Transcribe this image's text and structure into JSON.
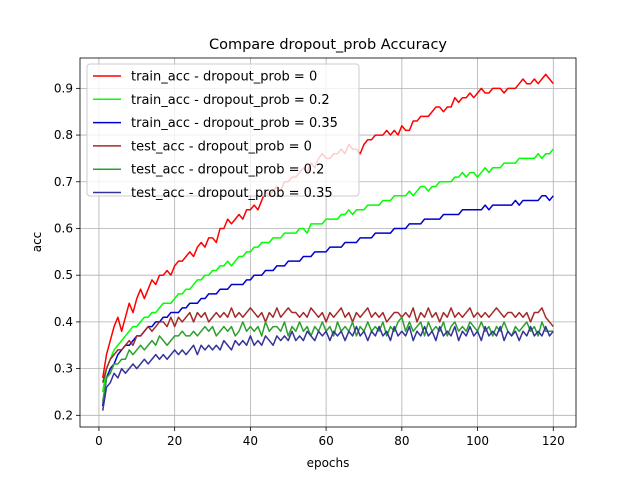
{
  "chart_data": {
    "type": "line",
    "title": "Compare dropout_prob Accuracy",
    "xlabel": "epochs",
    "ylabel": "acc",
    "xlim": [
      -5,
      126
    ],
    "ylim": [
      0.175,
      0.965
    ],
    "xticks": [
      0,
      20,
      40,
      60,
      80,
      100,
      120
    ],
    "yticks": [
      0.2,
      0.3,
      0.4,
      0.5,
      0.6,
      0.7,
      0.8,
      0.9
    ],
    "grid": true,
    "legend_position": "top-left",
    "x": [
      1,
      2,
      3,
      4,
      5,
      6,
      7,
      8,
      9,
      10,
      11,
      12,
      13,
      14,
      15,
      16,
      17,
      18,
      19,
      20,
      21,
      22,
      23,
      24,
      25,
      26,
      27,
      28,
      29,
      30,
      31,
      32,
      33,
      34,
      35,
      36,
      37,
      38,
      39,
      40,
      41,
      42,
      43,
      44,
      45,
      46,
      47,
      48,
      49,
      50,
      51,
      52,
      53,
      54,
      55,
      56,
      57,
      58,
      59,
      60,
      61,
      62,
      63,
      64,
      65,
      66,
      67,
      68,
      69,
      70,
      71,
      72,
      73,
      74,
      75,
      76,
      77,
      78,
      79,
      80,
      81,
      82,
      83,
      84,
      85,
      86,
      87,
      88,
      89,
      90,
      91,
      92,
      93,
      94,
      95,
      96,
      97,
      98,
      99,
      100,
      101,
      102,
      103,
      104,
      105,
      106,
      107,
      108,
      109,
      110,
      111,
      112,
      113,
      114,
      115,
      116,
      117,
      118,
      119,
      120
    ],
    "series": [
      {
        "name": "train_acc - dropout_prob = 0",
        "color": "#ff0000",
        "values": [
          0.28,
          0.33,
          0.36,
          0.39,
          0.41,
          0.38,
          0.41,
          0.44,
          0.42,
          0.45,
          0.47,
          0.45,
          0.47,
          0.49,
          0.48,
          0.5,
          0.5,
          0.51,
          0.5,
          0.52,
          0.53,
          0.53,
          0.54,
          0.55,
          0.54,
          0.56,
          0.57,
          0.56,
          0.58,
          0.58,
          0.57,
          0.6,
          0.6,
          0.62,
          0.61,
          0.62,
          0.63,
          0.62,
          0.64,
          0.64,
          0.65,
          0.64,
          0.66,
          0.68,
          0.67,
          0.68,
          0.69,
          0.68,
          0.7,
          0.7,
          0.71,
          0.71,
          0.72,
          0.73,
          0.72,
          0.74,
          0.73,
          0.75,
          0.76,
          0.75,
          0.75,
          0.76,
          0.76,
          0.77,
          0.76,
          0.78,
          0.77,
          0.77,
          0.76,
          0.78,
          0.79,
          0.79,
          0.8,
          0.8,
          0.8,
          0.81,
          0.8,
          0.81,
          0.8,
          0.82,
          0.81,
          0.81,
          0.83,
          0.83,
          0.84,
          0.84,
          0.84,
          0.85,
          0.86,
          0.86,
          0.85,
          0.86,
          0.86,
          0.88,
          0.87,
          0.88,
          0.88,
          0.89,
          0.88,
          0.89,
          0.9,
          0.89,
          0.89,
          0.9,
          0.9,
          0.9,
          0.89,
          0.9,
          0.9,
          0.9,
          0.91,
          0.92,
          0.91,
          0.91,
          0.92,
          0.91,
          0.92,
          0.93,
          0.92,
          0.91
        ]
      },
      {
        "name": "train_acc - dropout_prob = 0.2",
        "color": "#00ff00",
        "values": [
          0.25,
          0.3,
          0.32,
          0.34,
          0.35,
          0.36,
          0.37,
          0.38,
          0.39,
          0.39,
          0.4,
          0.41,
          0.41,
          0.42,
          0.42,
          0.43,
          0.44,
          0.44,
          0.44,
          0.45,
          0.46,
          0.46,
          0.47,
          0.47,
          0.48,
          0.49,
          0.49,
          0.5,
          0.5,
          0.51,
          0.51,
          0.52,
          0.52,
          0.53,
          0.52,
          0.53,
          0.54,
          0.54,
          0.55,
          0.55,
          0.56,
          0.56,
          0.57,
          0.57,
          0.57,
          0.58,
          0.58,
          0.58,
          0.59,
          0.59,
          0.59,
          0.59,
          0.6,
          0.6,
          0.59,
          0.61,
          0.61,
          0.61,
          0.61,
          0.62,
          0.62,
          0.62,
          0.62,
          0.63,
          0.63,
          0.64,
          0.63,
          0.64,
          0.64,
          0.64,
          0.65,
          0.65,
          0.65,
          0.65,
          0.66,
          0.66,
          0.66,
          0.67,
          0.67,
          0.67,
          0.67,
          0.68,
          0.67,
          0.68,
          0.69,
          0.69,
          0.68,
          0.69,
          0.69,
          0.7,
          0.7,
          0.7,
          0.7,
          0.71,
          0.71,
          0.72,
          0.71,
          0.72,
          0.72,
          0.71,
          0.72,
          0.73,
          0.72,
          0.73,
          0.73,
          0.73,
          0.74,
          0.74,
          0.74,
          0.74,
          0.75,
          0.75,
          0.75,
          0.75,
          0.75,
          0.76,
          0.75,
          0.76,
          0.76,
          0.77
        ]
      },
      {
        "name": "train_acc - dropout_prob = 0.35",
        "color": "#0000cc",
        "values": [
          0.22,
          0.28,
          0.3,
          0.31,
          0.33,
          0.34,
          0.35,
          0.35,
          0.36,
          0.37,
          0.37,
          0.38,
          0.39,
          0.39,
          0.4,
          0.4,
          0.41,
          0.41,
          0.42,
          0.42,
          0.42,
          0.43,
          0.43,
          0.44,
          0.44,
          0.44,
          0.45,
          0.45,
          0.46,
          0.46,
          0.46,
          0.47,
          0.47,
          0.47,
          0.48,
          0.48,
          0.48,
          0.48,
          0.49,
          0.49,
          0.5,
          0.5,
          0.5,
          0.51,
          0.51,
          0.51,
          0.52,
          0.52,
          0.52,
          0.53,
          0.53,
          0.53,
          0.53,
          0.54,
          0.54,
          0.54,
          0.55,
          0.55,
          0.55,
          0.55,
          0.56,
          0.56,
          0.56,
          0.56,
          0.57,
          0.57,
          0.57,
          0.57,
          0.58,
          0.58,
          0.58,
          0.58,
          0.59,
          0.59,
          0.59,
          0.59,
          0.59,
          0.6,
          0.6,
          0.6,
          0.6,
          0.61,
          0.61,
          0.61,
          0.61,
          0.62,
          0.62,
          0.62,
          0.62,
          0.62,
          0.63,
          0.63,
          0.63,
          0.63,
          0.63,
          0.64,
          0.64,
          0.64,
          0.64,
          0.64,
          0.64,
          0.65,
          0.64,
          0.65,
          0.65,
          0.65,
          0.65,
          0.65,
          0.65,
          0.66,
          0.65,
          0.66,
          0.66,
          0.66,
          0.66,
          0.66,
          0.67,
          0.67,
          0.66,
          0.67
        ]
      },
      {
        "name": "test_acc - dropout_prob = 0",
        "color": "#a52a2a",
        "values": [
          0.27,
          0.3,
          0.32,
          0.33,
          0.34,
          0.34,
          0.35,
          0.36,
          0.35,
          0.37,
          0.37,
          0.38,
          0.39,
          0.38,
          0.39,
          0.4,
          0.4,
          0.39,
          0.41,
          0.39,
          0.41,
          0.4,
          0.41,
          0.42,
          0.4,
          0.42,
          0.41,
          0.42,
          0.4,
          0.41,
          0.42,
          0.41,
          0.42,
          0.41,
          0.43,
          0.41,
          0.42,
          0.41,
          0.42,
          0.43,
          0.42,
          0.41,
          0.42,
          0.4,
          0.42,
          0.41,
          0.43,
          0.41,
          0.42,
          0.43,
          0.42,
          0.42,
          0.41,
          0.42,
          0.41,
          0.43,
          0.42,
          0.41,
          0.42,
          0.4,
          0.42,
          0.41,
          0.42,
          0.43,
          0.41,
          0.42,
          0.4,
          0.42,
          0.41,
          0.42,
          0.43,
          0.41,
          0.42,
          0.41,
          0.42,
          0.4,
          0.41,
          0.42,
          0.42,
          0.41,
          0.42,
          0.41,
          0.43,
          0.4,
          0.42,
          0.41,
          0.43,
          0.41,
          0.42,
          0.4,
          0.42,
          0.41,
          0.43,
          0.41,
          0.42,
          0.41,
          0.42,
          0.43,
          0.41,
          0.42,
          0.41,
          0.42,
          0.41,
          0.42,
          0.43,
          0.42,
          0.41,
          0.42,
          0.42,
          0.41,
          0.42,
          0.41,
          0.42,
          0.4,
          0.42,
          0.42,
          0.43,
          0.41,
          0.4,
          0.39
        ]
      },
      {
        "name": "test_acc - dropout_prob = 0.2",
        "color": "#2ca02c",
        "values": [
          0.23,
          0.28,
          0.29,
          0.31,
          0.31,
          0.32,
          0.32,
          0.34,
          0.33,
          0.34,
          0.35,
          0.34,
          0.35,
          0.36,
          0.35,
          0.37,
          0.36,
          0.35,
          0.36,
          0.37,
          0.37,
          0.38,
          0.37,
          0.37,
          0.38,
          0.37,
          0.38,
          0.39,
          0.38,
          0.39,
          0.37,
          0.38,
          0.39,
          0.38,
          0.39,
          0.37,
          0.38,
          0.4,
          0.38,
          0.39,
          0.38,
          0.39,
          0.37,
          0.4,
          0.38,
          0.39,
          0.39,
          0.38,
          0.4,
          0.37,
          0.39,
          0.38,
          0.4,
          0.38,
          0.39,
          0.37,
          0.39,
          0.38,
          0.4,
          0.38,
          0.39,
          0.37,
          0.4,
          0.38,
          0.39,
          0.38,
          0.4,
          0.37,
          0.39,
          0.38,
          0.4,
          0.38,
          0.39,
          0.38,
          0.4,
          0.37,
          0.39,
          0.38,
          0.4,
          0.41,
          0.38,
          0.4,
          0.38,
          0.39,
          0.4,
          0.37,
          0.4,
          0.38,
          0.39,
          0.38,
          0.4,
          0.37,
          0.39,
          0.4,
          0.38,
          0.39,
          0.38,
          0.4,
          0.39,
          0.38,
          0.4,
          0.38,
          0.39,
          0.37,
          0.39,
          0.38,
          0.4,
          0.38,
          0.37,
          0.39,
          0.38,
          0.39,
          0.4,
          0.38,
          0.39,
          0.37,
          0.4,
          0.38,
          0.38,
          0.38
        ]
      },
      {
        "name": "test_acc - dropout_prob = 0.35",
        "color": "#333399",
        "values": [
          0.21,
          0.26,
          0.27,
          0.29,
          0.28,
          0.3,
          0.29,
          0.3,
          0.31,
          0.3,
          0.31,
          0.32,
          0.31,
          0.32,
          0.33,
          0.32,
          0.33,
          0.32,
          0.33,
          0.34,
          0.33,
          0.34,
          0.33,
          0.34,
          0.35,
          0.33,
          0.35,
          0.34,
          0.35,
          0.34,
          0.35,
          0.34,
          0.36,
          0.35,
          0.34,
          0.36,
          0.35,
          0.36,
          0.35,
          0.37,
          0.35,
          0.36,
          0.35,
          0.37,
          0.36,
          0.35,
          0.37,
          0.36,
          0.37,
          0.36,
          0.38,
          0.36,
          0.37,
          0.36,
          0.38,
          0.37,
          0.36,
          0.38,
          0.37,
          0.38,
          0.36,
          0.38,
          0.37,
          0.38,
          0.36,
          0.38,
          0.37,
          0.39,
          0.37,
          0.38,
          0.36,
          0.38,
          0.37,
          0.39,
          0.37,
          0.38,
          0.36,
          0.39,
          0.37,
          0.38,
          0.37,
          0.39,
          0.36,
          0.38,
          0.37,
          0.39,
          0.37,
          0.38,
          0.36,
          0.39,
          0.37,
          0.38,
          0.37,
          0.39,
          0.36,
          0.38,
          0.37,
          0.39,
          0.37,
          0.38,
          0.36,
          0.39,
          0.37,
          0.38,
          0.37,
          0.39,
          0.36,
          0.38,
          0.37,
          0.38,
          0.36,
          0.38,
          0.37,
          0.39,
          0.37,
          0.38,
          0.37,
          0.39,
          0.37,
          0.38
        ]
      }
    ]
  }
}
